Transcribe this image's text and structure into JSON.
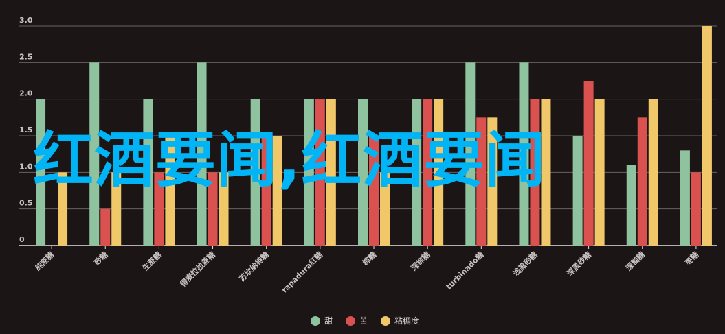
{
  "overlay_text": "红酒要闻,红酒要闻",
  "chart_data": {
    "type": "bar",
    "categories": [
      "纯蔗糖",
      "砂糖",
      "生蔗糖",
      "得麦拉拉蔗糖",
      "苏坎纳特糖",
      "rapadura红糖",
      "棕糖",
      "深棕糖",
      "turbinado糖",
      "浅黑砂糖",
      "深黑砂糖",
      "深糊糖",
      "枣糖"
    ],
    "series": [
      {
        "name": "甜",
        "color": "#8fc29f",
        "values": [
          2.0,
          2.5,
          2.0,
          2.5,
          2.0,
          2.0,
          2.0,
          2.0,
          2.5,
          2.5,
          1.5,
          1.1,
          1.3
        ]
      },
      {
        "name": "苦",
        "color": "#d95250",
        "values": [
          0,
          0.5,
          1.0,
          1.0,
          1.5,
          2.0,
          1.5,
          2.0,
          1.75,
          2.0,
          2.25,
          1.75,
          1.0
        ]
      },
      {
        "name": "粘稠度",
        "color": "#f0c86a",
        "values": [
          1.0,
          1.0,
          1.5,
          1.0,
          1.5,
          2.0,
          1.0,
          2.0,
          1.75,
          2.0,
          2.0,
          2.0,
          3.0
        ]
      }
    ],
    "yticks": [
      "0",
      "0.5",
      "1.0",
      "1.5",
      "2.0",
      "2.5",
      "3.0"
    ],
    "ylim": [
      0,
      3
    ],
    "grid": true,
    "legend": "bottom"
  }
}
